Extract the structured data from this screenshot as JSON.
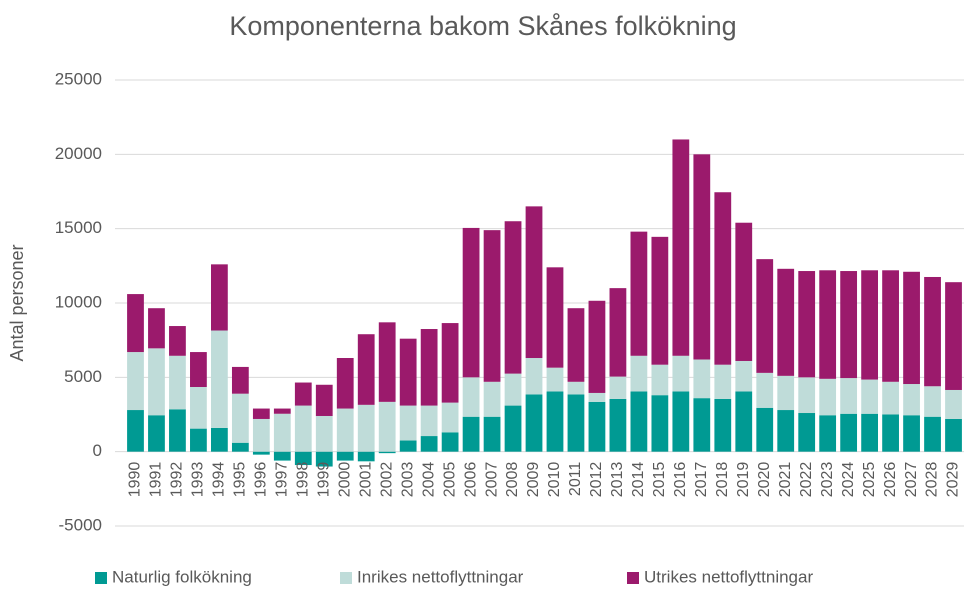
{
  "chart_data": {
    "type": "stacked_bar",
    "title": "Komponenterna bakom Skånes folkökning",
    "y_label": "Antal personer",
    "categories": [
      "1990",
      "1991",
      "1992",
      "1993",
      "1994",
      "1995",
      "1996",
      "1997",
      "1998",
      "1999",
      "2000",
      "2001",
      "2002",
      "2003",
      "2004",
      "2005",
      "2006",
      "2007",
      "2008",
      "2009",
      "2010",
      "2011",
      "2012",
      "2013",
      "2014",
      "2015",
      "2016",
      "2017",
      "2018",
      "2019",
      "2020",
      "2021",
      "2022",
      "2023",
      "2024",
      "2025",
      "2026",
      "2027",
      "2028",
      "2029"
    ],
    "series": [
      {
        "name": "Naturlig folkökning",
        "color": "#009a93",
        "values": [
          2800,
          2450,
          2850,
          1550,
          1600,
          600,
          -200,
          -600,
          -900,
          -1000,
          -600,
          -650,
          -100,
          750,
          1050,
          1300,
          2350,
          2350,
          3100,
          3850,
          4050,
          3850,
          3350,
          3550,
          4050,
          3800,
          4050,
          3600,
          3550,
          4050,
          2950,
          2800,
          2600,
          2450,
          2550,
          2550,
          2500,
          2450,
          2350,
          2200
        ]
      },
      {
        "name": "Inrikes nettoflyttningar",
        "color": "#bfdcd9",
        "values": [
          3900,
          4500,
          3600,
          2800,
          6550,
          3300,
          2200,
          2550,
          3100,
          2400,
          2900,
          3150,
          3350,
          2350,
          2050,
          2000,
          2650,
          2350,
          2150,
          2450,
          1600,
          850,
          600,
          1500,
          2400,
          2050,
          2400,
          2600,
          2300,
          2050,
          2350,
          2300,
          2400,
          2450,
          2400,
          2300,
          2200,
          2100,
          2050,
          1950
        ]
      },
      {
        "name": "Utrikes nettoflyttningar",
        "color": "#9b1a6c",
        "values": [
          3900,
          2700,
          2000,
          2350,
          4450,
          1800,
          700,
          350,
          1550,
          2100,
          3400,
          4750,
          5350,
          4500,
          5150,
          5350,
          10050,
          10200,
          10250,
          10200,
          6750,
          4950,
          6200,
          5950,
          8350,
          8600,
          14550,
          13800,
          11600,
          9300,
          7650,
          7200,
          7150,
          7300,
          7200,
          7350,
          7500,
          7550,
          7350,
          7250
        ]
      }
    ],
    "ylim": [
      -5000,
      25000
    ],
    "yticks": [
      -5000,
      0,
      5000,
      10000,
      15000,
      20000,
      25000
    ],
    "grid": true,
    "legend": "bottom"
  }
}
